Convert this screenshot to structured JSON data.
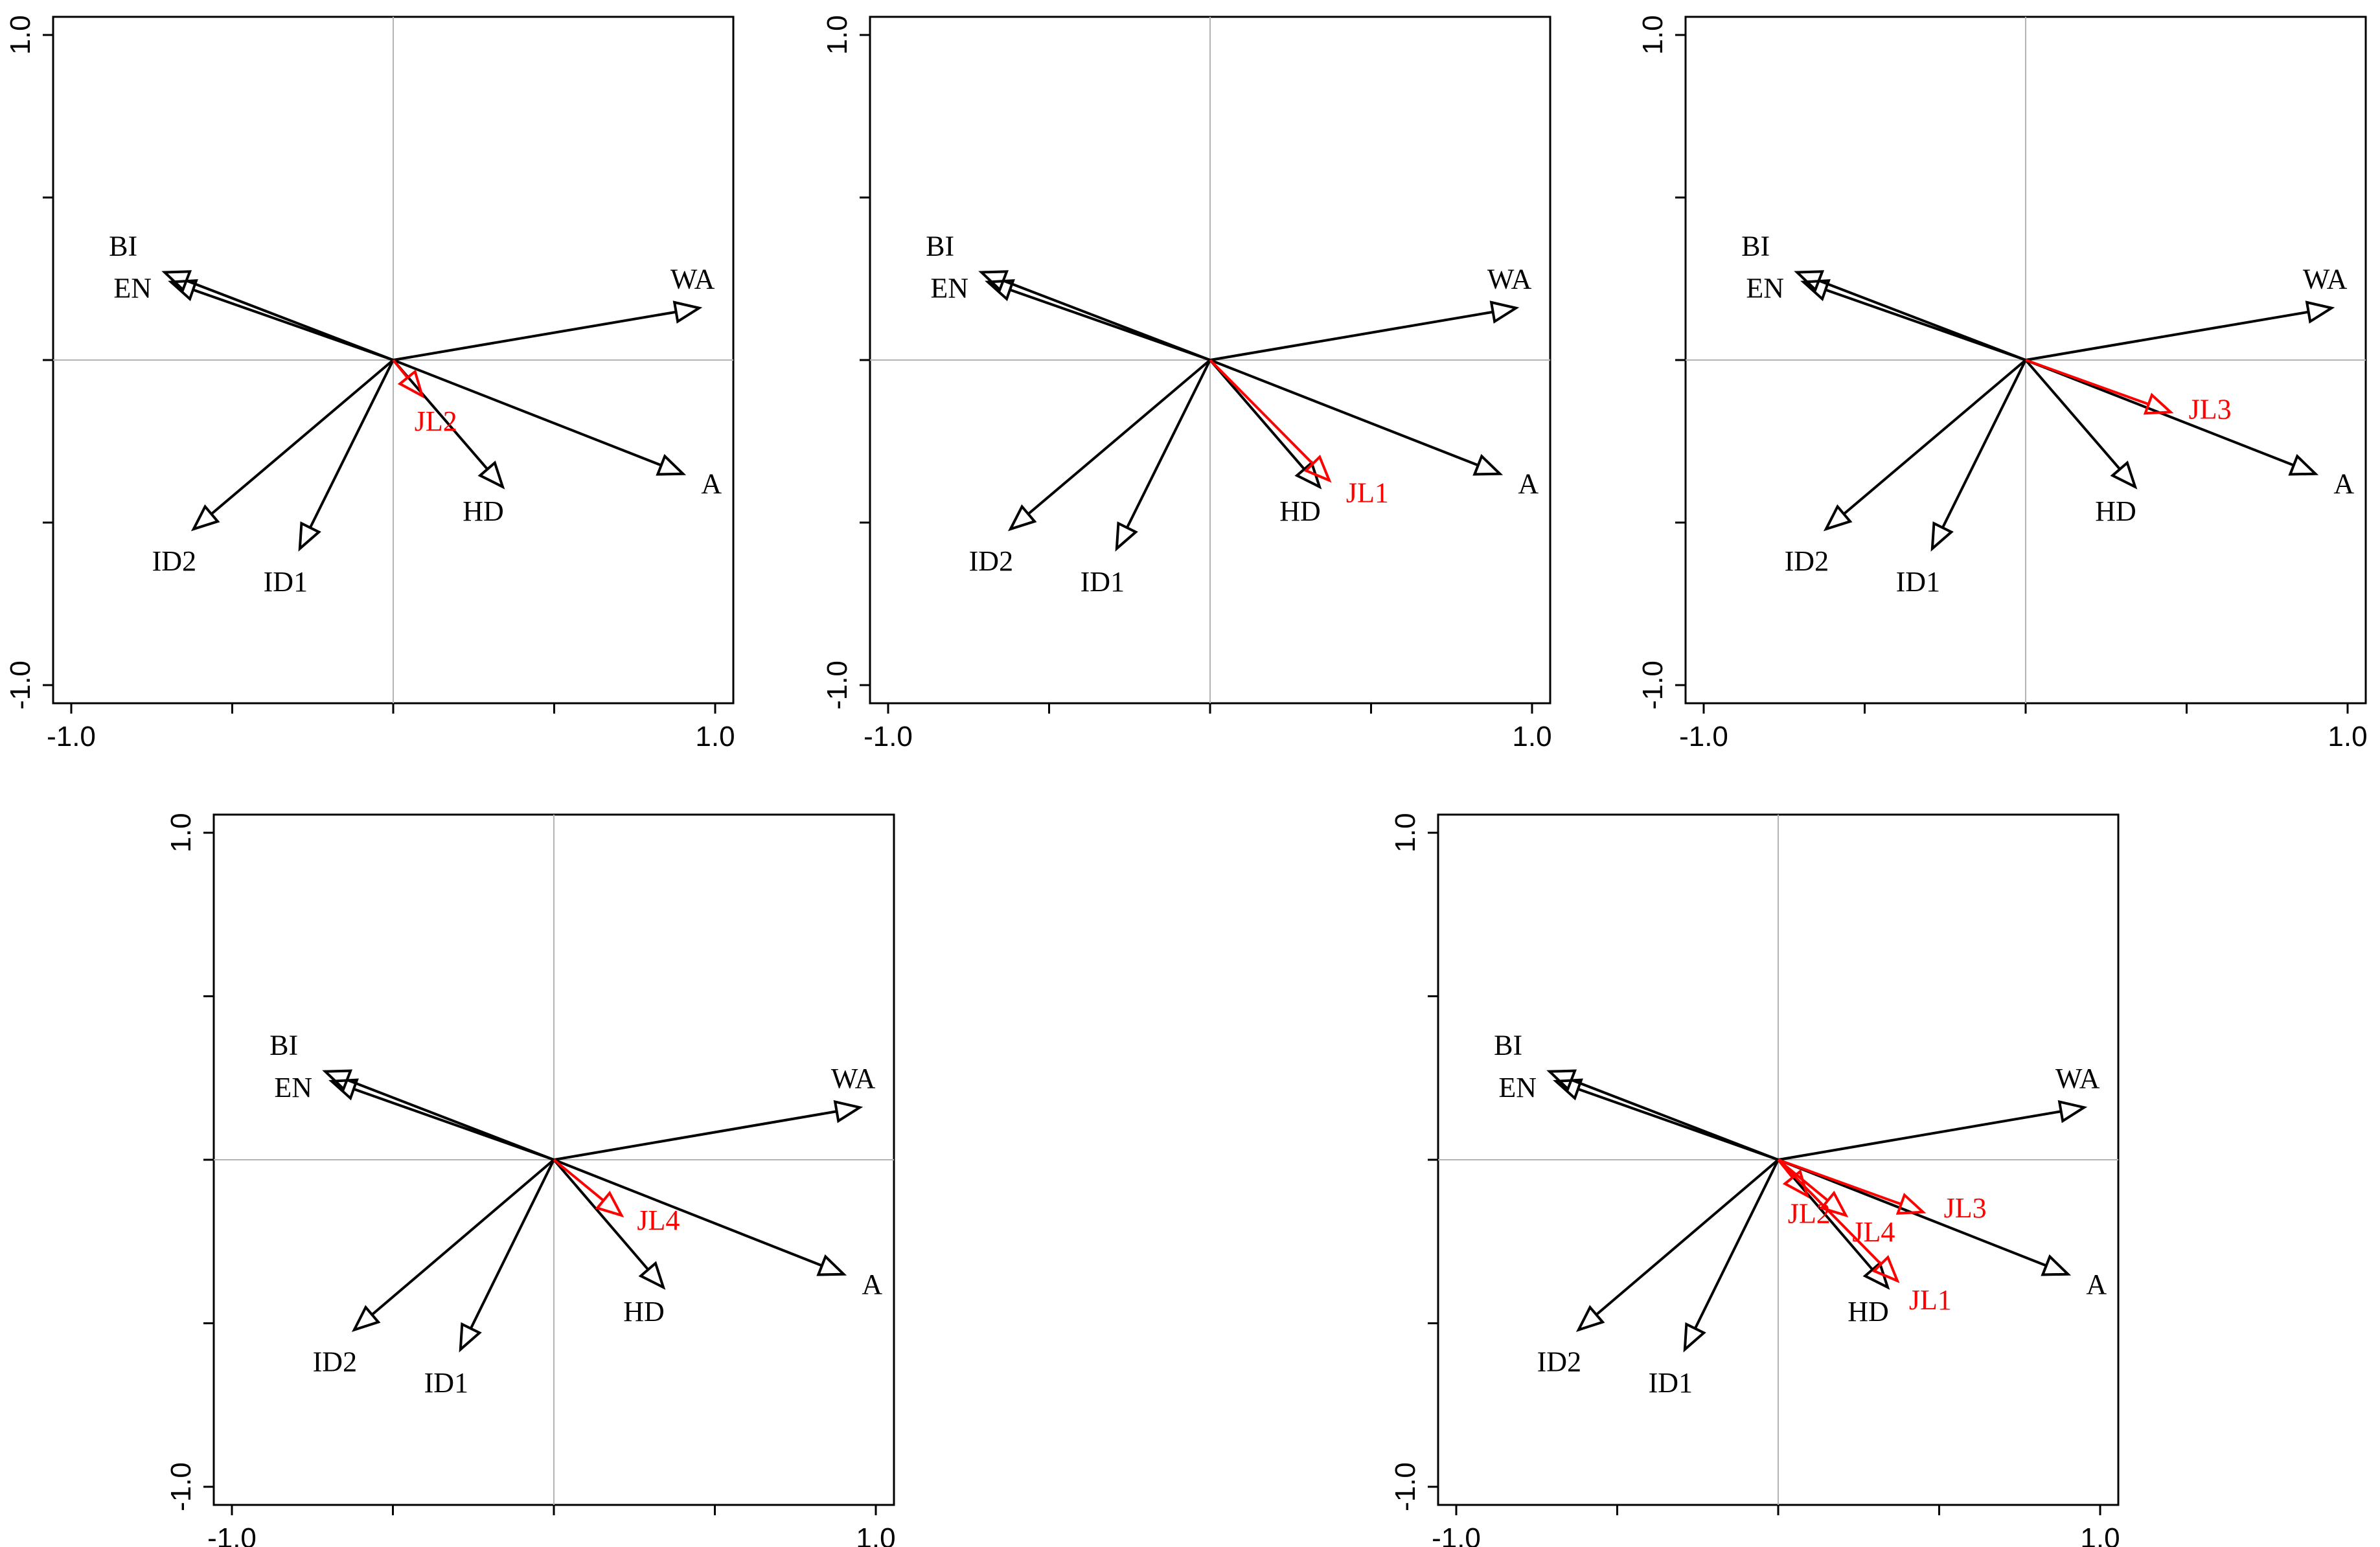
{
  "colors": {
    "environment": "#000000",
    "community": "#ff0000",
    "grid": "#b3b3b3"
  },
  "chart_data": [
    {
      "type": "biplot",
      "xlim": [
        -1.0,
        1.0
      ],
      "ylim": [
        -1.0,
        1.0
      ],
      "xticklabels": [
        "-1.0",
        "1.0"
      ],
      "yticklabels": [
        "-1.0",
        "1.0"
      ],
      "vectors": [
        {
          "label": "BI",
          "x": -0.71,
          "y": 0.27,
          "color": "#000000"
        },
        {
          "label": "EN",
          "x": -0.69,
          "y": 0.24,
          "color": "#000000"
        },
        {
          "label": "WA",
          "x": 0.95,
          "y": 0.16,
          "color": "#000000"
        },
        {
          "label": "A",
          "x": 0.9,
          "y": -0.35,
          "color": "#000000"
        },
        {
          "label": "HD",
          "x": 0.34,
          "y": -0.39,
          "color": "#000000"
        },
        {
          "label": "ID1",
          "x": -0.29,
          "y": -0.58,
          "color": "#000000"
        },
        {
          "label": "ID2",
          "x": -0.62,
          "y": -0.52,
          "color": "#000000"
        },
        {
          "label": "JL2",
          "x": 0.09,
          "y": -0.11,
          "color": "#ff0000"
        }
      ]
    },
    {
      "type": "biplot",
      "xlim": [
        -1.0,
        1.0
      ],
      "ylim": [
        -1.0,
        1.0
      ],
      "xticklabels": [
        "-1.0",
        "1.0"
      ],
      "yticklabels": [
        "-1.0",
        "1.0"
      ],
      "vectors": [
        {
          "label": "BI",
          "x": -0.71,
          "y": 0.27,
          "color": "#000000"
        },
        {
          "label": "EN",
          "x": -0.69,
          "y": 0.24,
          "color": "#000000"
        },
        {
          "label": "WA",
          "x": 0.95,
          "y": 0.16,
          "color": "#000000"
        },
        {
          "label": "A",
          "x": 0.9,
          "y": -0.35,
          "color": "#000000"
        },
        {
          "label": "HD",
          "x": 0.34,
          "y": -0.39,
          "color": "#000000"
        },
        {
          "label": "ID1",
          "x": -0.29,
          "y": -0.58,
          "color": "#000000"
        },
        {
          "label": "ID2",
          "x": -0.62,
          "y": -0.52,
          "color": "#000000"
        },
        {
          "label": "JL1",
          "x": 0.37,
          "y": -0.37,
          "color": "#ff0000"
        }
      ]
    },
    {
      "type": "biplot",
      "xlim": [
        -1.0,
        1.0
      ],
      "ylim": [
        -1.0,
        1.0
      ],
      "xticklabels": [
        "-1.0",
        "1.0"
      ],
      "yticklabels": [
        "-1.0",
        "1.0"
      ],
      "vectors": [
        {
          "label": "BI",
          "x": -0.71,
          "y": 0.27,
          "color": "#000000"
        },
        {
          "label": "EN",
          "x": -0.69,
          "y": 0.24,
          "color": "#000000"
        },
        {
          "label": "WA",
          "x": 0.95,
          "y": 0.16,
          "color": "#000000"
        },
        {
          "label": "A",
          "x": 0.9,
          "y": -0.35,
          "color": "#000000"
        },
        {
          "label": "HD",
          "x": 0.34,
          "y": -0.39,
          "color": "#000000"
        },
        {
          "label": "ID1",
          "x": -0.29,
          "y": -0.58,
          "color": "#000000"
        },
        {
          "label": "ID2",
          "x": -0.62,
          "y": -0.52,
          "color": "#000000"
        },
        {
          "label": "JL3",
          "x": 0.45,
          "y": -0.16,
          "color": "#ff0000"
        }
      ]
    },
    {
      "type": "biplot",
      "xlim": [
        -1.0,
        1.0
      ],
      "ylim": [
        -1.0,
        1.0
      ],
      "xticklabels": [
        "-1.0",
        "1.0"
      ],
      "yticklabels": [
        "-1.0",
        "1.0"
      ],
      "vectors": [
        {
          "label": "BI",
          "x": -0.71,
          "y": 0.27,
          "color": "#000000"
        },
        {
          "label": "EN",
          "x": -0.69,
          "y": 0.24,
          "color": "#000000"
        },
        {
          "label": "WA",
          "x": 0.95,
          "y": 0.16,
          "color": "#000000"
        },
        {
          "label": "A",
          "x": 0.9,
          "y": -0.35,
          "color": "#000000"
        },
        {
          "label": "HD",
          "x": 0.34,
          "y": -0.39,
          "color": "#000000"
        },
        {
          "label": "ID1",
          "x": -0.29,
          "y": -0.58,
          "color": "#000000"
        },
        {
          "label": "ID2",
          "x": -0.62,
          "y": -0.52,
          "color": "#000000"
        },
        {
          "label": "JL4",
          "x": 0.21,
          "y": -0.17,
          "color": "#ff0000"
        }
      ]
    },
    {
      "type": "biplot",
      "xlim": [
        -1.0,
        1.0
      ],
      "ylim": [
        -1.0,
        1.0
      ],
      "xticklabels": [
        "-1.0",
        "1.0"
      ],
      "yticklabels": [
        "-1.0",
        "1.0"
      ],
      "vectors": [
        {
          "label": "BI",
          "x": -0.71,
          "y": 0.27,
          "color": "#000000"
        },
        {
          "label": "EN",
          "x": -0.69,
          "y": 0.24,
          "color": "#000000"
        },
        {
          "label": "WA",
          "x": 0.95,
          "y": 0.16,
          "color": "#000000"
        },
        {
          "label": "A",
          "x": 0.9,
          "y": -0.35,
          "color": "#000000"
        },
        {
          "label": "HD",
          "x": 0.34,
          "y": -0.39,
          "color": "#000000"
        },
        {
          "label": "ID1",
          "x": -0.29,
          "y": -0.58,
          "color": "#000000"
        },
        {
          "label": "ID2",
          "x": -0.62,
          "y": -0.52,
          "color": "#000000"
        },
        {
          "label": "JL2",
          "x": 0.09,
          "y": -0.11,
          "color": "#ff0000"
        },
        {
          "label": "JL4",
          "x": 0.21,
          "y": -0.17,
          "color": "#ff0000"
        },
        {
          "label": "JL3",
          "x": 0.45,
          "y": -0.16,
          "color": "#ff0000"
        },
        {
          "label": "JL1",
          "x": 0.37,
          "y": -0.37,
          "color": "#ff0000"
        }
      ]
    }
  ]
}
